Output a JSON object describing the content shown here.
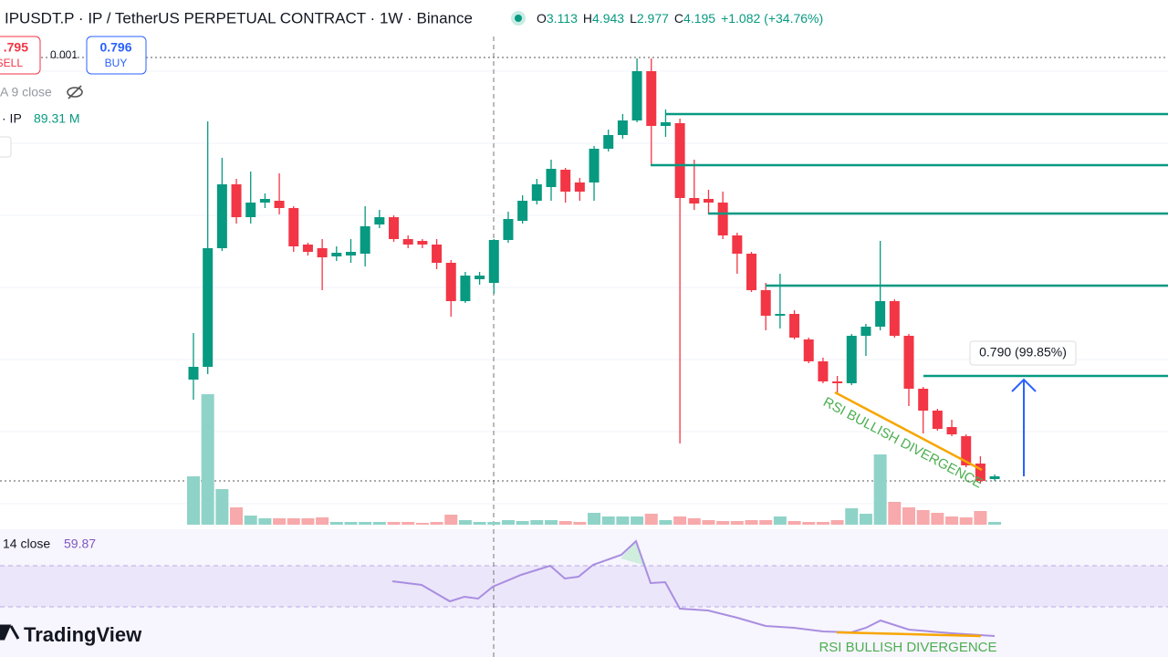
{
  "header": {
    "symbol": "IPUSDT.P · IP / TetherUS PERPETUAL CONTRACT · 1W · Binance",
    "open_label": "O",
    "open": "3.113",
    "high_label": "H",
    "high": "4.943",
    "low_label": "L",
    "low": "2.977",
    "close_label": "C",
    "close": "4.195",
    "change": "+1.082 (+34.76%)"
  },
  "trade": {
    "sell_price": ".795",
    "sell": "SELL",
    "spread": "0.001",
    "buy_price": "0.796",
    "buy": "BUY"
  },
  "indicators": {
    "ma": "A 9 close",
    "volume_name": "· IP",
    "volume_value": "89.31 M"
  },
  "annotations": {
    "measure": "0.790 (99.85%)",
    "divergence_main": "RSI BULLISH DIVERGENCE",
    "divergence_rsi": "RSI BULLISH DIVERGENCE"
  },
  "rsi": {
    "name": "14 close",
    "value": "59.87"
  },
  "brand": "TradingView"
}
